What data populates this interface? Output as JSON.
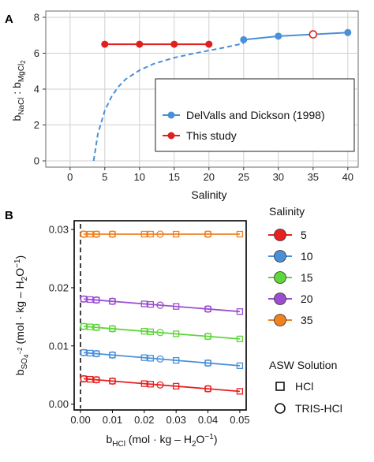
{
  "chart_data": [
    {
      "panel": "A",
      "type": "line",
      "xlabel": "Salinity",
      "ylabel_parts": [
        "b",
        "NaCl",
        " : b",
        "MgCl",
        "2"
      ],
      "xlim": [
        -3.5,
        41.5
      ],
      "ylim": [
        -0.35,
        8.35
      ],
      "xticks": [
        0,
        5,
        10,
        15,
        20,
        25,
        30,
        35,
        40
      ],
      "yticks": [
        0,
        2,
        4,
        6,
        8
      ],
      "grid": true,
      "legend_position": "bottom-right",
      "series": [
        {
          "name": "DelValls and Dickson (1998)",
          "color": "#4a90d9",
          "curve": [
            [
              3.4,
              0
            ],
            [
              4,
              1.5
            ],
            [
              5,
              2.8
            ],
            [
              6,
              3.6
            ],
            [
              7,
              4.15
            ],
            [
              8,
              4.55
            ],
            [
              10,
              5.05
            ],
            [
              12,
              5.4
            ],
            [
              15,
              5.75
            ],
            [
              18,
              6.0
            ],
            [
              20,
              6.15
            ],
            [
              22,
              6.3
            ],
            [
              25,
              6.55
            ]
          ],
          "line": [
            [
              25,
              6.75
            ],
            [
              30,
              6.95
            ],
            [
              35,
              7.05
            ],
            [
              40,
              7.15
            ]
          ],
          "points": [
            [
              25,
              6.75
            ],
            [
              30,
              6.95
            ],
            [
              40,
              7.15
            ]
          ]
        },
        {
          "name": "This study",
          "color": "#e02020",
          "line": [
            [
              5,
              6.5
            ],
            [
              10,
              6.5
            ],
            [
              15,
              6.5
            ],
            [
              20,
              6.5
            ]
          ],
          "points": [
            [
              5,
              6.5
            ],
            [
              10,
              6.5
            ],
            [
              15,
              6.5
            ],
            [
              20,
              6.5
            ]
          ],
          "open_points": [
            [
              35,
              7.05
            ]
          ]
        }
      ]
    },
    {
      "panel": "B",
      "type": "line",
      "xlabel_parts": [
        "b",
        "HCl",
        " (mol · kg – H",
        "2",
        "O",
        "−1",
        ")"
      ],
      "ylabel_parts": [
        "b",
        "SO",
        "4",
        "−2",
        " (mol · kg – H",
        "2",
        "O",
        "−1",
        ")"
      ],
      "xlim": [
        -0.002,
        0.052
      ],
      "ylim": [
        -0.001,
        0.0315
      ],
      "xticks": [
        "0.00",
        "0.01",
        "0.02",
        "0.03",
        "0.04",
        "0.05"
      ],
      "yticks": [
        "0.00",
        "0.01",
        "0.02",
        "0.03"
      ],
      "vline_x": 0,
      "legend_title": "Salinity",
      "legend2_title": "ASW Solution",
      "legend2_items": [
        "HCl",
        "TRIS-HCl"
      ],
      "hcl_x": [
        0.001,
        0.003,
        0.005,
        0.01,
        0.02,
        0.022,
        0.03,
        0.04,
        0.05
      ],
      "tris_x": [
        0.001,
        0.005,
        0.01,
        0.025,
        0.04
      ],
      "series": [
        {
          "name": "5",
          "color": "#e82020",
          "intercept": 0.0044,
          "end": 0.0022
        },
        {
          "name": "10",
          "color": "#4a90d9",
          "intercept": 0.0089,
          "end": 0.0066
        },
        {
          "name": "15",
          "color": "#5fd63a",
          "intercept": 0.0134,
          "end": 0.0112
        },
        {
          "name": "20",
          "color": "#9b4fd0",
          "intercept": 0.0181,
          "end": 0.0159
        },
        {
          "name": "35",
          "color": "#f08020",
          "intercept": 0.0292,
          "end": 0.0292
        }
      ]
    }
  ]
}
